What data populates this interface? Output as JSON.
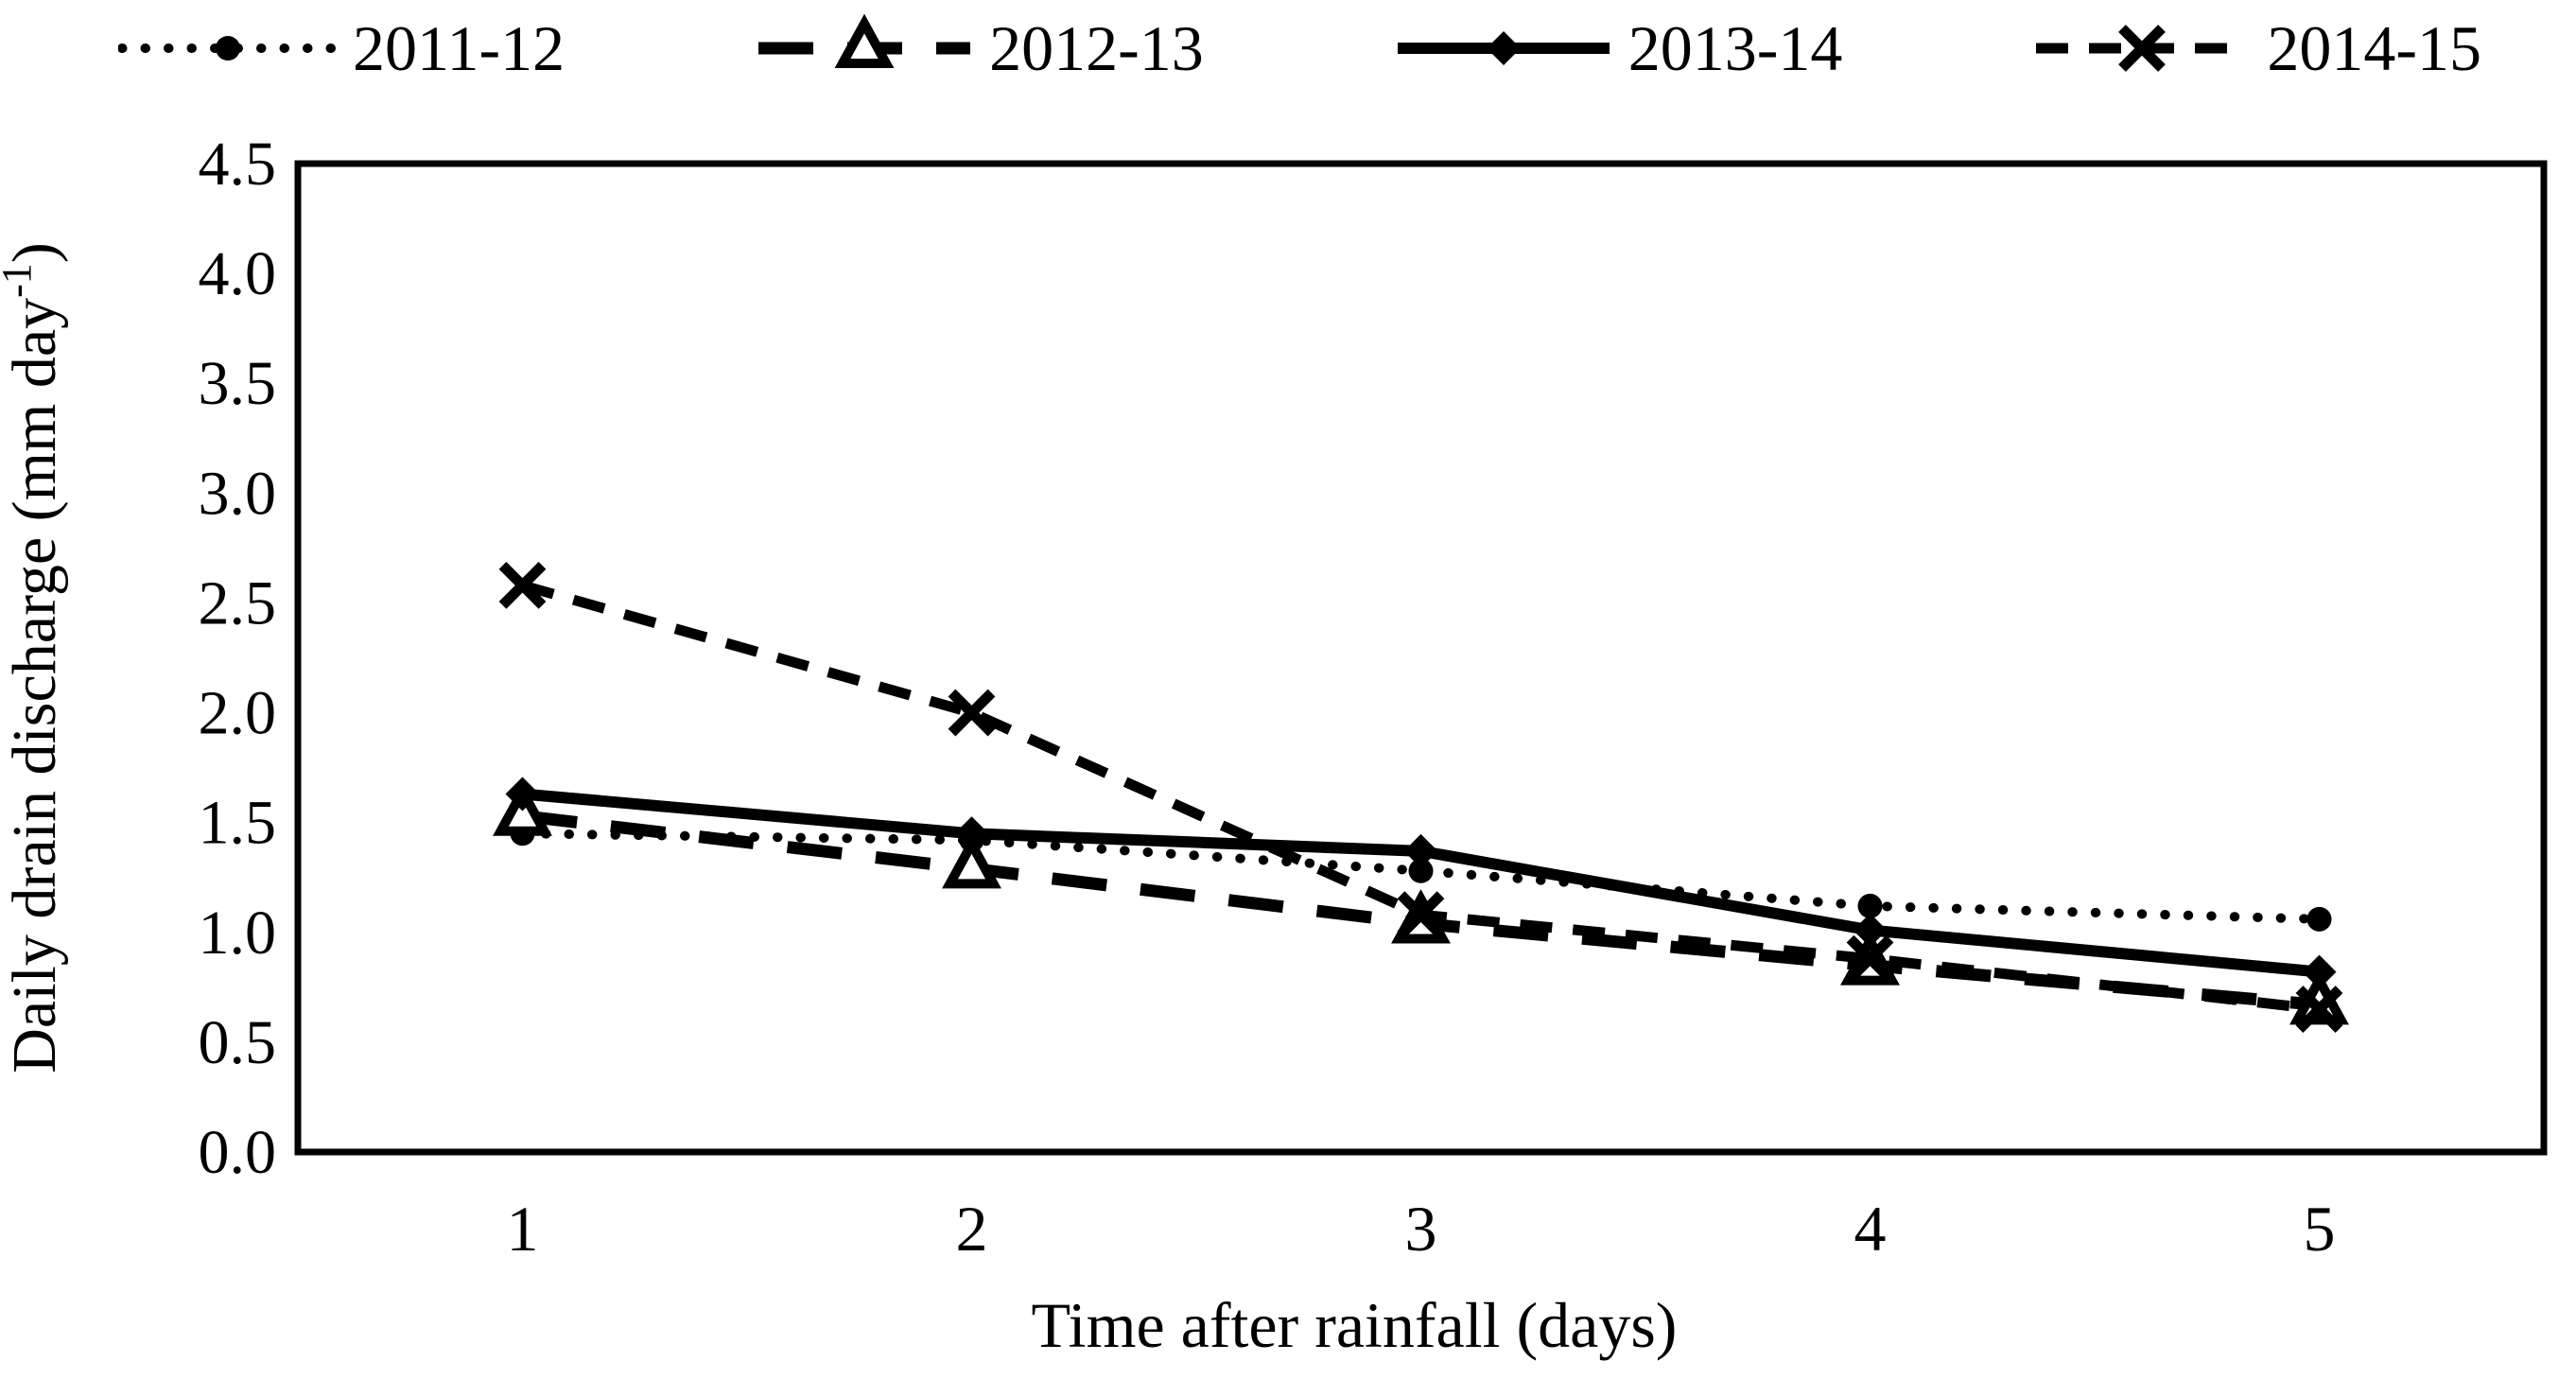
{
  "figure": {
    "background": "#ffffff",
    "ink_color": "#000000",
    "ylabel_prefix": "Daily drain discharge (mm day",
    "ylabel_sup": "-1",
    "ylabel_suffix": ")"
  },
  "chart_data": {
    "type": "line",
    "title": "",
    "x": [
      1,
      2,
      3,
      4,
      5
    ],
    "xlabel": "Time after rainfall (days)",
    "ylabel": "Daily drain discharge (mm day-1)",
    "ylim": [
      0.0,
      4.5
    ],
    "ytick_step": 0.5,
    "ytick_labels": [
      "4.5",
      "4.0",
      "3.5",
      "3.0",
      "2.5",
      "2.0",
      "1.5",
      "1.0",
      "0.5",
      "0.0"
    ],
    "xtick_labels": [
      "1",
      "2",
      "3",
      "4",
      "5"
    ],
    "grid": false,
    "legend_position": "top",
    "series": [
      {
        "name": "2011-12",
        "line": "dotted",
        "marker": "circle-filled",
        "values": [
          1.45,
          1.42,
          1.28,
          1.12,
          1.06
        ]
      },
      {
        "name": "2012-13",
        "line": "long-dash",
        "marker": "triangle-open",
        "values": [
          1.53,
          1.29,
          1.04,
          0.85,
          0.67
        ]
      },
      {
        "name": "2013-14",
        "line": "solid",
        "marker": "diamond-filled",
        "values": [
          1.63,
          1.45,
          1.37,
          1.01,
          0.82
        ]
      },
      {
        "name": "2014-15",
        "line": "dash",
        "marker": "x",
        "values": [
          2.58,
          2.0,
          1.08,
          0.88,
          0.65
        ]
      }
    ]
  }
}
